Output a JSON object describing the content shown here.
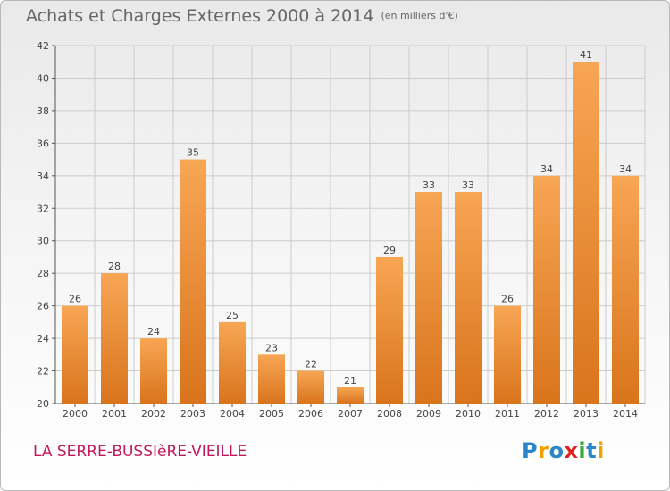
{
  "header": {
    "title": "Achats et Charges Externes 2000 à 2014",
    "subtitle": "(en milliers d'€)"
  },
  "footer": {
    "place": "LA SERRE-BUSSIèRE-VIEILLE",
    "logo": [
      "P",
      "r",
      "o",
      "x",
      "i",
      "t",
      "i"
    ]
  },
  "colors": {
    "bar_light": "#f7a654",
    "bar_dark": "#d9741c",
    "place_text": "#c0185a",
    "grid": "#cccccc"
  },
  "chart_data": {
    "type": "bar",
    "title": "Achats et Charges Externes 2000 à 2014",
    "subtitle": "(en milliers d'€)",
    "categories": [
      "2000",
      "2001",
      "2002",
      "2003",
      "2004",
      "2005",
      "2006",
      "2007",
      "2008",
      "2009",
      "2010",
      "2011",
      "2012",
      "2013",
      "2014"
    ],
    "values": [
      26,
      28,
      24,
      35,
      25,
      23,
      22,
      21,
      29,
      33,
      33,
      26,
      34,
      41,
      34
    ],
    "ylim": [
      20,
      42
    ],
    "yticks": [
      20,
      22,
      24,
      26,
      28,
      30,
      32,
      34,
      36,
      38,
      40,
      42
    ],
    "grid": true,
    "data_labels": true
  }
}
